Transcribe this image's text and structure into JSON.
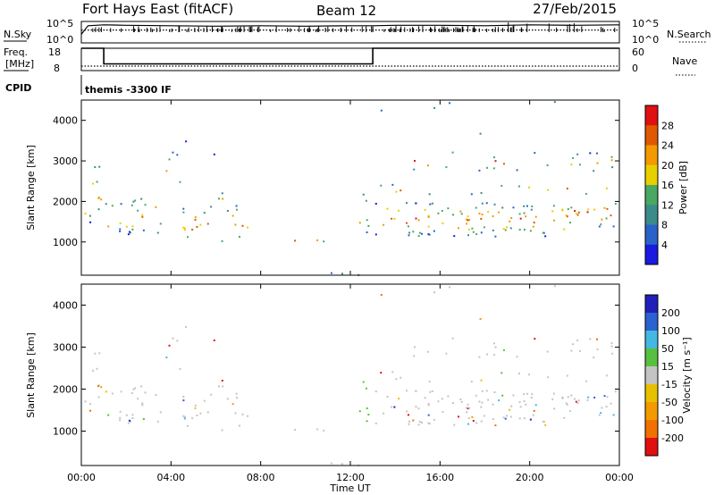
{
  "header": {
    "station": "Fort Hays East (fitACF)",
    "beam": "Beam 12",
    "date": "27/Feb/2015"
  },
  "noise_panel": {
    "left_label": "N.Sky",
    "right_label": "N.Search",
    "left_ticks": [
      "10^5",
      "10^0"
    ],
    "right_ticks": [
      "10^5",
      "10^0"
    ]
  },
  "freq_panel": {
    "left_label_top": "Freq.",
    "left_label_bottom": "[MHz]",
    "right_label": "Nave",
    "left_ticks": [
      "18",
      "8"
    ],
    "right_ticks": [
      "60",
      "0"
    ]
  },
  "cpid_panel": {
    "label": "CPID",
    "mode": "themis -3300 IF"
  },
  "power_panel": {
    "ylabel": "Slant Range [km]",
    "colorbar_label": "Power [dB]"
  },
  "velocity_panel": {
    "ylabel": "Slant Range [km]",
    "colorbar_label": "Velocity [m s⁻¹]"
  },
  "xlabel": "Time UT",
  "colors": {
    "power": [
      "#1a1ae0",
      "#2a62c8",
      "#3c8a8a",
      "#4aa860",
      "#e8d000",
      "#f29a00",
      "#e05800",
      "#e01010"
    ],
    "velocity": [
      "#2020b8",
      "#2a62d0",
      "#44b8e0",
      "#58c040",
      "#c4c4c4",
      "#e8c000",
      "#f29a00",
      "#f07000",
      "#e01010"
    ],
    "ground_scatter": "#c4c4c4"
  },
  "chart_data": [
    {
      "type": "line",
      "name": "noise",
      "x_unit": "hours UT",
      "x_range": [
        0,
        24
      ],
      "series": [
        {
          "name": "N.Sky",
          "x": [
            0,
            0.3,
            1,
            2,
            4,
            6,
            8,
            10,
            12,
            13,
            14,
            16,
            18,
            20,
            22,
            24
          ],
          "y": [
            2,
            4,
            4.2,
            4.1,
            4.0,
            3.9,
            4.0,
            3.9,
            4.0,
            4.0,
            4.1,
            4.1,
            4.0,
            4.2,
            4.1,
            4.2
          ]
        },
        {
          "name": "N.Search",
          "x": [
            0,
            2,
            4,
            6,
            8,
            10,
            12,
            14,
            16,
            18,
            20,
            22,
            24
          ],
          "y": [
            3.0,
            3.0,
            3.0,
            3.0,
            3.0,
            3.0,
            3.0,
            3.0,
            3.0,
            3.0,
            3.0,
            3.0,
            3.0
          ]
        }
      ]
    },
    {
      "type": "line",
      "name": "frequency",
      "x_unit": "hours UT",
      "x_range": [
        0,
        24
      ],
      "left_range": [
        8,
        18
      ],
      "right_range": [
        0,
        60
      ],
      "series": [
        {
          "name": "Freq.",
          "x": [
            0,
            1.0,
            1.0,
            13.0,
            13.0,
            24
          ],
          "y": [
            18,
            18,
            11,
            11,
            18,
            18
          ]
        },
        {
          "name": "Nave",
          "x": [
            0,
            24
          ],
          "y": [
            12,
            12
          ]
        }
      ]
    },
    {
      "type": "heatmap",
      "name": "power",
      "x_unit": "hours UT",
      "y_unit": "km",
      "x_ticks": [
        "00:00",
        "04:00",
        "08:00",
        "12:00",
        "16:00",
        "20:00",
        "00:00"
      ],
      "y_ticks": [
        "1000",
        "2000",
        "3000",
        "4000"
      ],
      "ylim": [
        180,
        4500
      ],
      "colorbar": {
        "ticks": [
          "4",
          "8",
          "12",
          "16",
          "20",
          "24",
          "28"
        ],
        "range": [
          0,
          32
        ]
      }
    },
    {
      "type": "heatmap",
      "name": "velocity",
      "x_unit": "hours UT",
      "y_unit": "km",
      "x_ticks": [
        "00:00",
        "04:00",
        "08:00",
        "12:00",
        "16:00",
        "20:00",
        "00:00"
      ],
      "y_ticks": [
        "1000",
        "2000",
        "3000",
        "4000"
      ],
      "ylim": [
        180,
        4500
      ],
      "colorbar": {
        "ticks": [
          "200",
          "100",
          "50",
          "15",
          "-15",
          "-50",
          "-100",
          "-200"
        ]
      }
    }
  ]
}
